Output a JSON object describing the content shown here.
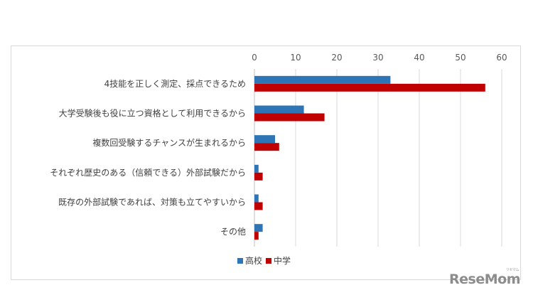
{
  "chart_data": {
    "type": "bar",
    "orientation": "horizontal",
    "categories": [
      "4技能を正しく測定、採点できるため",
      "大学受験後も役に立つ資格として利用できるから",
      "複数回受験するチャンスが生まれるから",
      "それぞれ歴史のある（信頼できる）外部試験だから",
      "既存の外部試験であれば、対策も立てやすいから",
      "その他"
    ],
    "series": [
      {
        "name": "高校",
        "color": "#2e75b6",
        "values": [
          33,
          12,
          5,
          1,
          1,
          2
        ]
      },
      {
        "name": "中学",
        "color": "#c00000",
        "values": [
          56,
          17,
          6,
          2,
          2,
          1
        ]
      }
    ],
    "xlim": [
      0,
      60
    ],
    "xticks": [
      0,
      10,
      20,
      30,
      40,
      50,
      60
    ],
    "grid": true,
    "x_axis_position": "top",
    "legend_position": "bottom"
  },
  "watermark": {
    "text": "ReseMom",
    "kana": "リセマム"
  }
}
